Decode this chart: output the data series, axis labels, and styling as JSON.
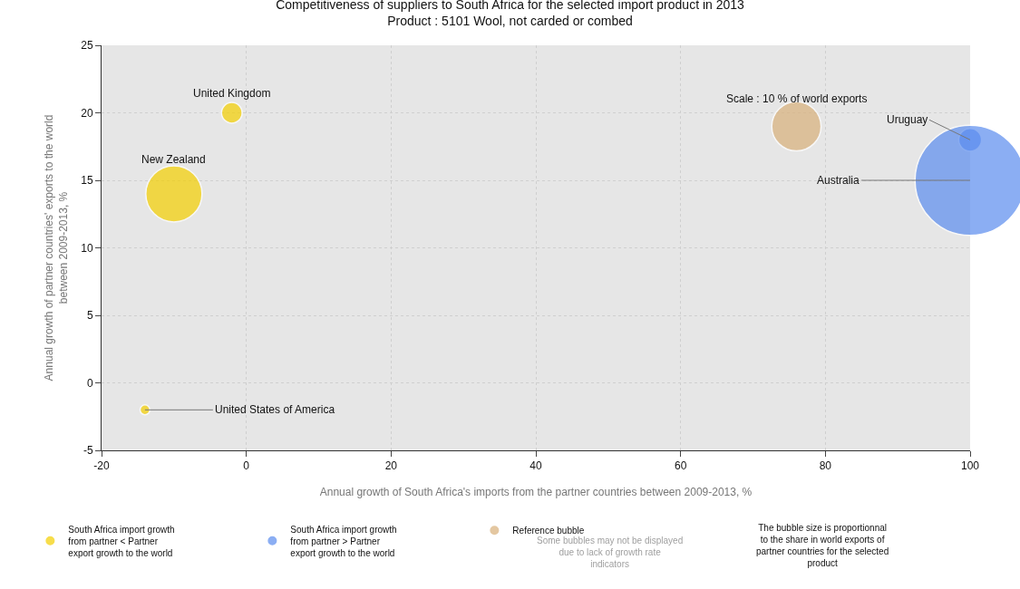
{
  "chart_data": {
    "type": "bubble",
    "title": "Competitiveness of suppliers to South Africa for the selected import product in 2013",
    "subtitle": "Product : 5101 Wool, not carded or combed",
    "xlabel": "Annual growth of South Africa's imports from the partner countries between 2009-2013, %",
    "ylabel": "Annual growth of partner countries' exports to the world between 2009-2013, %",
    "series": [
      {
        "name": "South Africa import growth from partner < Partner export growth to the world",
        "color": "#f5d000",
        "x": [
          -2,
          -10,
          -14
        ],
        "values": [
          20,
          14,
          -2
        ],
        "sizes": [
          0.035,
          0.26,
          0.008
        ]
      },
      {
        "name": "South Africa import growth from partner > Partner export growth to the world",
        "color": "#5b8def",
        "x": [
          100,
          100
        ],
        "values": [
          18,
          15
        ],
        "sizes": [
          0.043,
          1
        ]
      },
      {
        "name": "Reference bubble",
        "color": "#d9b07a",
        "x": [
          76
        ],
        "values": [
          19
        ],
        "sizes": [
          0.2
        ]
      }
    ],
    "annotations": [
      {
        "text": "United Kingdom",
        "x": -2,
        "y": 20
      },
      {
        "text": "New Zealand",
        "x": -10,
        "y": 14
      },
      {
        "text": "United States of America",
        "x": -14,
        "y": -2
      },
      {
        "text": "Uruguay",
        "x": 100,
        "y": 18
      },
      {
        "text": "Australia",
        "x": 100,
        "y": 15
      },
      {
        "text": "Scale : 10 % of world exports",
        "x": 76,
        "y": 19
      },
      "Some bubbles may not be displayed due to lack of growth rate indicators",
      "The bubble size is proportionnal to the share in world exports of partner countries for the selected product"
    ],
    "xlim": [
      -20,
      100
    ],
    "xticks": [
      -20,
      0,
      20,
      40,
      60,
      80,
      100
    ],
    "ylim": [
      -5,
      25
    ],
    "yticks": [
      -5,
      0,
      5,
      10,
      15,
      20,
      25
    ],
    "grid": true,
    "legend": "bottom"
  }
}
